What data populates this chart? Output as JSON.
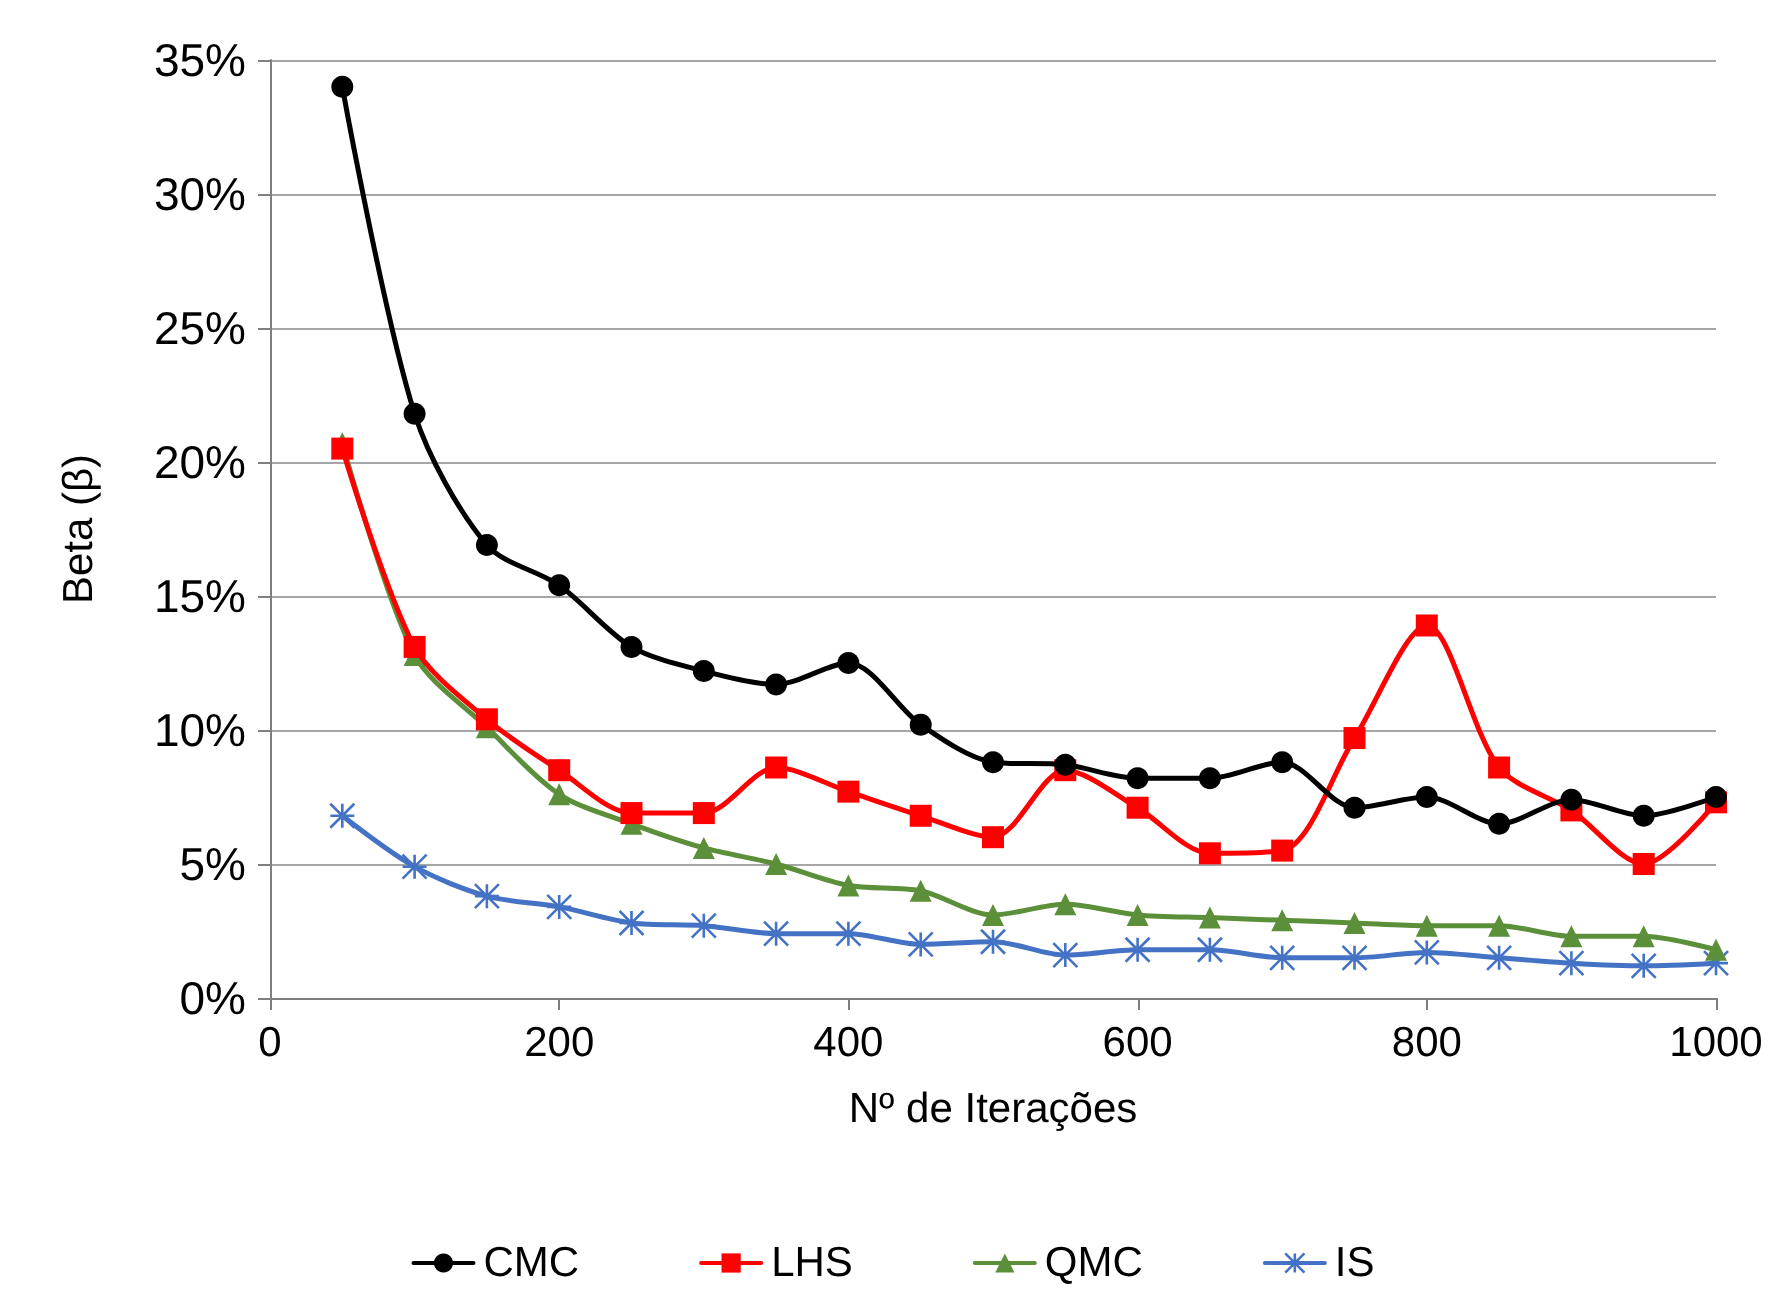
{
  "chart_data": {
    "type": "line",
    "xlabel": "Nº de Iterações",
    "ylabel": "Beta (β)",
    "x": [
      50,
      100,
      150,
      200,
      250,
      300,
      350,
      400,
      450,
      500,
      550,
      600,
      650,
      700,
      750,
      800,
      850,
      900,
      950,
      1000
    ],
    "series": [
      {
        "name": "CMC",
        "color": "#000000",
        "marker": "circle",
        "values": [
          34.0,
          21.8,
          16.9,
          15.4,
          13.1,
          12.2,
          11.7,
          12.5,
          10.2,
          8.8,
          8.7,
          8.2,
          8.2,
          8.8,
          7.1,
          7.5,
          6.5,
          7.4,
          6.8,
          7.5
        ]
      },
      {
        "name": "LHS",
        "color": "#ff0000",
        "marker": "square",
        "values": [
          20.5,
          13.1,
          10.4,
          8.5,
          6.9,
          6.9,
          8.6,
          7.7,
          6.8,
          6.0,
          8.5,
          7.1,
          5.4,
          5.5,
          9.7,
          13.9,
          8.6,
          7.0,
          5.0,
          7.3
        ]
      },
      {
        "name": "QMC",
        "color": "#5b8f3a",
        "marker": "triangle",
        "values": [
          20.7,
          12.8,
          10.1,
          7.6,
          6.5,
          5.6,
          5.0,
          4.2,
          4.0,
          3.1,
          3.5,
          3.1,
          3.0,
          2.9,
          2.8,
          2.7,
          2.7,
          2.3,
          2.3,
          1.8
        ]
      },
      {
        "name": "IS",
        "color": "#4472c4",
        "marker": "cross",
        "values": [
          6.8,
          4.9,
          3.8,
          3.4,
          2.8,
          2.7,
          2.4,
          2.4,
          2.0,
          2.1,
          1.6,
          1.8,
          1.8,
          1.5,
          1.5,
          1.7,
          1.5,
          1.3,
          1.2,
          1.3
        ]
      }
    ],
    "xlim": [
      0,
      1000
    ],
    "xticks": [
      0,
      200,
      400,
      600,
      800,
      1000
    ],
    "ylim": [
      0,
      35
    ],
    "yticks": [
      {
        "value": 0,
        "label": "0%"
      },
      {
        "value": 5,
        "label": "5%"
      },
      {
        "value": 10,
        "label": "10%"
      },
      {
        "value": 15,
        "label": "15%"
      },
      {
        "value": 20,
        "label": "20%"
      },
      {
        "value": 25,
        "label": "25%"
      },
      {
        "value": 30,
        "label": "30%"
      },
      {
        "value": 35,
        "label": "35%"
      }
    ],
    "grid": "y",
    "legend": "bottom",
    "line_style": "solid"
  }
}
